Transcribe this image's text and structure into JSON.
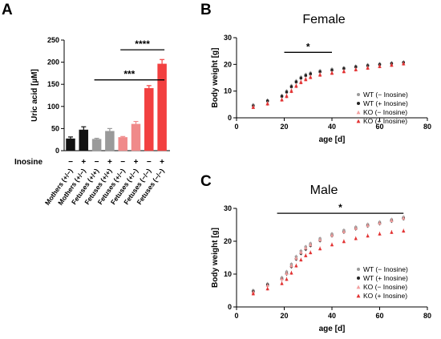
{
  "chart_data": [
    {
      "panel": "A",
      "type": "bar",
      "ylabel": "Uric acid [µM]",
      "ylim": [
        0,
        250
      ],
      "yticks": [
        0,
        50,
        100,
        150,
        200,
        250
      ],
      "row_label": "Inosine",
      "categories": [
        "Mothers (+/−)",
        "Mothers (+/−)",
        "Fetuses (+/+)",
        "Fetuses (+/+)",
        "Fetuses (+/−)",
        "Fetuses (+/−)",
        "Fetuses (−/−)",
        "Fetuses (−/−)"
      ],
      "inosine": [
        "−",
        "+",
        "−",
        "+",
        "−",
        "+",
        "−",
        "+"
      ],
      "values": [
        27,
        47,
        26,
        44,
        30,
        60,
        141,
        196
      ],
      "errors": [
        4,
        7,
        2,
        6,
        2,
        6,
        6,
        10
      ],
      "colors": [
        "#111111",
        "#111111",
        "#9a9a9a",
        "#9a9a9a",
        "#f08a8a",
        "#f08a8a",
        "#f24040",
        "#f24040"
      ],
      "significance": [
        {
          "from": 4,
          "to": 7,
          "label": "****",
          "y": 228
        },
        {
          "from": 2,
          "to": 7,
          "label": "***",
          "y": 160
        }
      ]
    },
    {
      "panel": "B",
      "type": "scatter",
      "title": "Female",
      "xlabel": "age [d]",
      "ylabel": "Body weight [g]",
      "xlim": [
        0,
        80
      ],
      "ylim": [
        0,
        30
      ],
      "xticks": [
        0,
        20,
        40,
        60,
        80
      ],
      "yticks": [
        0,
        10,
        20,
        30
      ],
      "significance": {
        "from": 20,
        "to": 40,
        "y": 24.5,
        "label": "*"
      },
      "legend_position": "right",
      "series": [
        {
          "name": "WT (− Inosine)",
          "color": "#9a9a9a",
          "marker": "circle",
          "x": [
            7,
            13,
            19,
            21,
            23,
            25,
            27,
            29,
            31,
            35,
            40,
            45,
            50,
            55,
            60,
            65,
            70
          ],
          "y": [
            4.8,
            6.5,
            8.3,
            10.0,
            12.0,
            13.8,
            15.2,
            16.2,
            16.8,
            17.6,
            18.2,
            18.7,
            19.3,
            19.8,
            20.2,
            20.5,
            20.8
          ]
        },
        {
          "name": "WT (+ Inosine)",
          "color": "#222222",
          "marker": "circle",
          "x": [
            7,
            13,
            19,
            21,
            23,
            25,
            27,
            29,
            31,
            35,
            40,
            45,
            50,
            55,
            60,
            65,
            70
          ],
          "y": [
            4.5,
            6.3,
            8.0,
            9.6,
            11.6,
            13.4,
            14.8,
            15.8,
            16.4,
            17.2,
            17.8,
            18.4,
            19.0,
            19.5,
            19.9,
            20.3,
            20.7
          ]
        },
        {
          "name": "KO (− Inosine)",
          "color": "#f3a0a0",
          "marker": "triangle",
          "x": [
            7,
            13,
            19,
            21,
            23,
            25,
            27,
            29,
            31,
            35,
            40,
            45,
            50,
            55,
            60,
            65,
            70
          ],
          "y": [
            4.2,
            5.6,
            7.0,
            8.5,
            10.5,
            12.3,
            13.7,
            14.8,
            15.5,
            16.4,
            17.0,
            17.6,
            18.3,
            18.9,
            19.4,
            19.9,
            20.4
          ]
        },
        {
          "name": "KO (+ Inosine)",
          "color": "#e23333",
          "marker": "triangle",
          "x": [
            7,
            13,
            19,
            21,
            23,
            25,
            27,
            29,
            31,
            35,
            40,
            45,
            50,
            55,
            60,
            65,
            70
          ],
          "y": [
            4.0,
            5.3,
            6.8,
            8.1,
            10.0,
            11.9,
            13.3,
            14.4,
            15.2,
            16.1,
            16.8,
            17.4,
            18.1,
            18.7,
            19.3,
            19.8,
            20.3
          ]
        }
      ]
    },
    {
      "panel": "C",
      "type": "scatter",
      "title": "Male",
      "xlabel": "age [d]",
      "ylabel": "Body weight [g]",
      "xlim": [
        0,
        80
      ],
      "ylim": [
        0,
        30
      ],
      "xticks": [
        0,
        20,
        40,
        60,
        80
      ],
      "yticks": [
        0,
        10,
        20,
        30
      ],
      "significance": {
        "from": 17,
        "to": 70,
        "y": 28.5,
        "label": "*"
      },
      "legend_position": "right",
      "series": [
        {
          "name": "WT (− Inosine)",
          "color": "#9a9a9a",
          "marker": "circle",
          "x": [
            7,
            13,
            19,
            21,
            23,
            25,
            27,
            29,
            31,
            35,
            40,
            45,
            50,
            55,
            60,
            65,
            70
          ],
          "y": [
            5.0,
            7.0,
            8.9,
            10.7,
            13.0,
            15.3,
            17.0,
            18.3,
            19.3,
            20.8,
            22.2,
            23.3,
            24.3,
            25.1,
            25.8,
            26.6,
            27.3
          ]
        },
        {
          "name": "WT (+ Inosine)",
          "color": "#222222",
          "marker": "circle",
          "x": [
            7,
            13,
            19,
            21,
            23,
            25,
            27,
            29,
            31,
            35,
            40,
            45,
            50,
            55,
            60,
            65,
            70
          ],
          "y": [
            4.7,
            6.7,
            8.5,
            10.1,
            12.3,
            14.6,
            16.3,
            17.6,
            18.7,
            20.2,
            21.7,
            22.8,
            23.8,
            24.7,
            25.4,
            26.2,
            26.9
          ]
        },
        {
          "name": "KO (− Inosine)",
          "color": "#f3a0a0",
          "marker": "triangle",
          "x": [
            7,
            13,
            19,
            21,
            23,
            25,
            27,
            29,
            31,
            35,
            40,
            45,
            50,
            55,
            60,
            65,
            70
          ],
          "y": [
            4.6,
            6.6,
            8.6,
            10.3,
            12.6,
            14.9,
            16.7,
            18.0,
            19.0,
            20.5,
            21.9,
            23.0,
            24.0,
            24.9,
            25.6,
            26.4,
            27.1
          ]
        },
        {
          "name": "KO (+ Inosine)",
          "color": "#e23333",
          "marker": "triangle",
          "x": [
            7,
            13,
            19,
            21,
            23,
            25,
            27,
            29,
            31,
            35,
            40,
            45,
            50,
            55,
            60,
            65,
            70
          ],
          "y": [
            4.1,
            5.6,
            7.2,
            8.5,
            10.4,
            12.6,
            14.4,
            15.7,
            16.6,
            17.8,
            19.0,
            20.0,
            20.9,
            21.7,
            22.3,
            22.8,
            23.2
          ]
        }
      ]
    }
  ],
  "panel_letters": [
    "A",
    "B",
    "C"
  ]
}
